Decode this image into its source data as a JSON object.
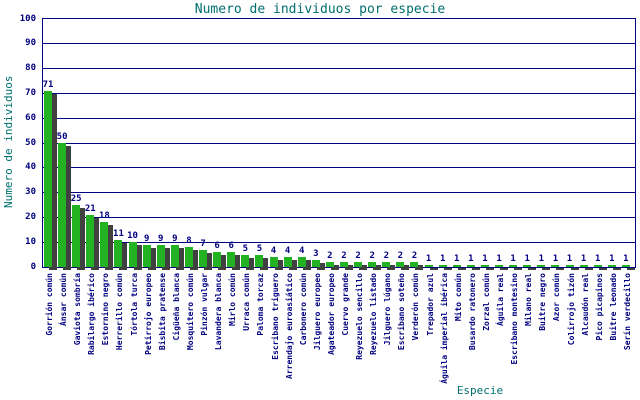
{
  "chart": {
    "title": "Numero de individuos por especie",
    "ylabel": "Numero de individuos",
    "xlabel": "Especie"
  },
  "colors": {
    "bar": "#22B222",
    "bar_shadow": "#404040",
    "grid": "#000080",
    "tick_text": "#000080",
    "value_text": "#000080",
    "title_text": "#007070",
    "background": "#FFFFFF"
  },
  "chart_data": {
    "type": "bar",
    "title": "Numero de individuos por especie",
    "xlabel": "Especie",
    "ylabel": "Numero de individuos",
    "ylim": [
      0,
      100
    ],
    "ytick_step": 10,
    "grid": true,
    "legend": false,
    "bar_value_labels": true,
    "categories": [
      "Gorrión común",
      "Ánsar común",
      "Gaviota sombría",
      "Rabilargo ibérico",
      "Estornino negro",
      "Herrerillo común",
      "Tórtola turca",
      "Petirrojo europeo",
      "Bisbita pratense",
      "Cigüeña blanca",
      "Mosquitero común",
      "Pinzón vulgar",
      "Lavandera blanca",
      "Mirlo común",
      "Urraca común",
      "Paloma torcaz",
      "Escribano triguero",
      "Arrendajo euroasiático",
      "Carbonero común",
      "Jilguero europeo",
      "Agateador europeo",
      "Cuervo grande",
      "Reyezuelo sencillo",
      "Reyezuelo listado",
      "Jilguero lúgano",
      "Escribano soteño",
      "Verderón común",
      "Trepador azul",
      "Águila imperial ibérica",
      "Mito común",
      "Busardo ratonero",
      "Zorzal común",
      "Águila real",
      "Escribano montesino",
      "Milano real",
      "Buitre negro",
      "Azor común",
      "Colirrojo tizón",
      "Alcaudón real",
      "Pico picapinos",
      "Buitre leonado",
      "Serín verdecillo"
    ],
    "values": [
      71,
      50,
      25,
      21,
      18,
      11,
      10,
      9,
      9,
      9,
      8,
      7,
      6,
      6,
      5,
      5,
      4,
      4,
      4,
      3,
      2,
      2,
      2,
      2,
      2,
      2,
      2,
      1,
      1,
      1,
      1,
      1,
      1,
      1,
      1,
      1,
      1,
      1,
      1,
      1,
      1,
      1
    ]
  }
}
